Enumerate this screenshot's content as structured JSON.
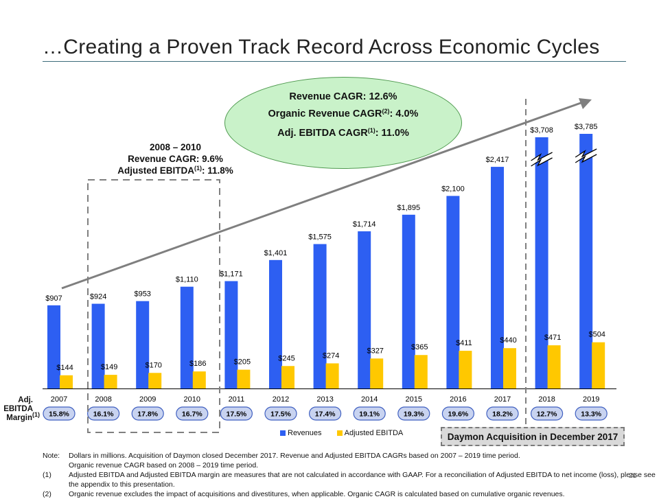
{
  "slide": {
    "title": "…Creating a Proven Track Record Across Economic Cycles",
    "page_number": "21"
  },
  "colors": {
    "revenue": "#2d5ff2",
    "ebitda": "#ffc800",
    "trend_arrow": "#7f7f7f",
    "margin_pill_fill": "#c8d3f0",
    "margin_pill_border": "#3f5fc0",
    "oval_fill": "#c9f2c9"
  },
  "cagr_oval": {
    "line1": "Revenue CAGR: 12.6%",
    "line2_pre": "Organic Revenue CAGR",
    "line2_sup": "(2)",
    "line2_post": ": 4.0%",
    "line3_pre": "Adj. EBITDA CAGR",
    "line3_sup": "(1)",
    "line3_post": ": 11.0%"
  },
  "period_box": {
    "line1": "2008 – 2010",
    "line2": "Revenue CAGR: 9.6%",
    "line3_pre": "Adjusted EBITDA",
    "line3_sup": "(1)",
    "line3_post": ": 11.8%"
  },
  "margin_header": {
    "line1": "Adj.",
    "line2": "EBITDA",
    "line3_pre": "Margin",
    "line3_sup": "(1)"
  },
  "daymon_label": "Daymon Acquisition in December 2017",
  "chart_data": {
    "type": "bar",
    "title": "",
    "xlabel": "",
    "ylabel": "",
    "units": "$ in millions",
    "categories": [
      "2007",
      "2008",
      "2009",
      "2010",
      "2011",
      "2012",
      "2013",
      "2014",
      "2015",
      "2016",
      "2017",
      "2018",
      "2019"
    ],
    "series": [
      {
        "name": "Revenues",
        "values": [
          907,
          924,
          953,
          1110,
          1171,
          1401,
          1575,
          1714,
          1895,
          2100,
          2417,
          3708,
          3785
        ],
        "labels": [
          "$907",
          "$924",
          "$953",
          "$1,110",
          "$1,171",
          "$1,401",
          "$1,575",
          "$1,714",
          "$1,895",
          "$2,100",
          "$2,417",
          "$3,708",
          "$3,785"
        ]
      },
      {
        "name": "Adjusted EBITDA",
        "values": [
          144,
          149,
          170,
          186,
          205,
          245,
          274,
          327,
          365,
          411,
          440,
          471,
          504
        ],
        "labels": [
          "$144",
          "$149",
          "$170",
          "$186",
          "$205",
          "$245",
          "$274",
          "$327",
          "$365",
          "$411",
          "$440",
          "$471",
          "$504"
        ]
      }
    ],
    "ebitda_margin": [
      "15.8%",
      "16.1%",
      "17.8%",
      "16.7%",
      "17.5%",
      "17.5%",
      "17.4%",
      "19.1%",
      "19.3%",
      "19.6%",
      "18.2%",
      "12.7%",
      "13.3%"
    ],
    "axis_break_categories": [
      "2018",
      "2019"
    ],
    "legend": [
      "Revenues",
      "Adjusted EBITDA"
    ],
    "legend_position": "bottom"
  },
  "notes": [
    {
      "tag": "Note:",
      "text": "Dollars in millions. Acquisition of Daymon closed December 2017. Revenue and Adjusted EBITDA CAGRs based on 2007 – 2019 time period."
    },
    {
      "tag": "",
      "text": "Organic revenue CAGR based on 2008 – 2019 time period."
    },
    {
      "tag": "(1)",
      "text": "Adjusted EBITDA and Adjusted EBITDA margin are measures that are not calculated in accordance with GAAP. For a reconciliation of Adjusted EBITDA to net income (loss), please see"
    },
    {
      "tag": "",
      "text": "the appendix to this presentation."
    },
    {
      "tag": "(2)",
      "text": "Organic revenue excludes the impact of acquisitions and divestitures, when applicable. Organic CAGR is calculated based on cumulative organic revenues."
    }
  ]
}
